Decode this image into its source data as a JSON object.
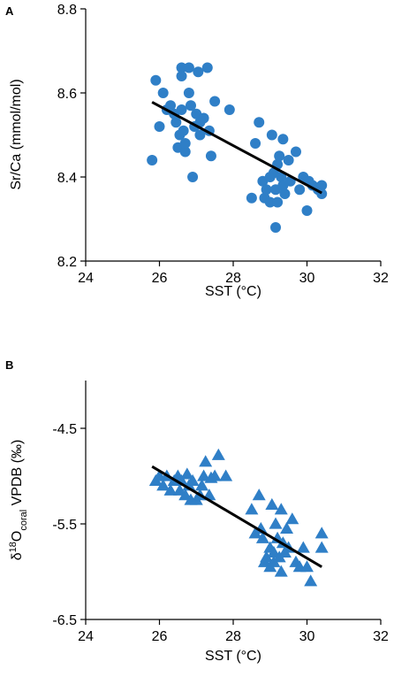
{
  "chart_data": [
    {
      "panel": "A",
      "type": "scatter",
      "xlabel": "SST (°C)",
      "ylabel": "Sr/Ca (mmol/mol)",
      "xlim": [
        24,
        32
      ],
      "ylim": [
        8.2,
        8.8
      ],
      "xticks": [
        "24",
        "26",
        "28",
        "30",
        "32"
      ],
      "yticks": [
        "8.2",
        "8.4",
        "8.6",
        "8.8"
      ],
      "marker": "circle",
      "color": "#2f7fc7",
      "trendline": {
        "x": [
          25.8,
          30.4
        ],
        "y": [
          8.578,
          8.362
        ]
      },
      "points": [
        [
          25.8,
          8.44
        ],
        [
          25.9,
          8.63
        ],
        [
          26.0,
          8.52
        ],
        [
          26.1,
          8.6
        ],
        [
          26.2,
          8.56
        ],
        [
          26.3,
          8.57
        ],
        [
          26.4,
          8.55
        ],
        [
          26.45,
          8.53
        ],
        [
          26.5,
          8.47
        ],
        [
          26.55,
          8.5
        ],
        [
          26.6,
          8.66
        ],
        [
          26.6,
          8.64
        ],
        [
          26.6,
          8.56
        ],
        [
          26.65,
          8.51
        ],
        [
          26.7,
          8.46
        ],
        [
          26.7,
          8.48
        ],
        [
          26.8,
          8.66
        ],
        [
          26.8,
          8.6
        ],
        [
          26.85,
          8.57
        ],
        [
          26.9,
          8.4
        ],
        [
          26.95,
          8.52
        ],
        [
          27.0,
          8.55
        ],
        [
          27.05,
          8.65
        ],
        [
          27.1,
          8.53
        ],
        [
          27.1,
          8.5
        ],
        [
          27.2,
          8.54
        ],
        [
          27.3,
          8.66
        ],
        [
          27.35,
          8.51
        ],
        [
          27.4,
          8.45
        ],
        [
          27.5,
          8.58
        ],
        [
          27.9,
          8.56
        ],
        [
          28.5,
          8.35
        ],
        [
          28.6,
          8.48
        ],
        [
          28.7,
          8.53
        ],
        [
          28.8,
          8.39
        ],
        [
          28.85,
          8.35
        ],
        [
          28.9,
          8.37
        ],
        [
          29.0,
          8.4
        ],
        [
          29.0,
          8.34
        ],
        [
          29.05,
          8.5
        ],
        [
          29.1,
          8.41
        ],
        [
          29.15,
          8.28
        ],
        [
          29.15,
          8.37
        ],
        [
          29.2,
          8.43
        ],
        [
          29.2,
          8.34
        ],
        [
          29.25,
          8.45
        ],
        [
          29.3,
          8.4
        ],
        [
          29.35,
          8.49
        ],
        [
          29.35,
          8.38
        ],
        [
          29.4,
          8.36
        ],
        [
          29.5,
          8.44
        ],
        [
          29.55,
          8.39
        ],
        [
          29.7,
          8.46
        ],
        [
          29.8,
          8.37
        ],
        [
          29.9,
          8.4
        ],
        [
          30.0,
          8.32
        ],
        [
          30.05,
          8.39
        ],
        [
          30.15,
          8.38
        ],
        [
          30.3,
          8.37
        ],
        [
          30.4,
          8.38
        ],
        [
          30.4,
          8.36
        ]
      ]
    },
    {
      "panel": "B",
      "type": "scatter",
      "xlabel": "SST (°C)",
      "ylabel_parts": [
        "δ",
        "18",
        "O",
        "coral",
        " VPDB (‰)"
      ],
      "xlim": [
        24,
        32
      ],
      "ylim": [
        -6.5,
        -4.0
      ],
      "xticks": [
        "24",
        "26",
        "28",
        "30",
        "32"
      ],
      "yticks": [
        "-4.5",
        "-5.5",
        "-6.5"
      ],
      "ytick_values": [
        -4.5,
        -5.5,
        -6.5
      ],
      "marker": "triangle",
      "color": "#2f7fc7",
      "trendline": {
        "x": [
          25.8,
          30.4
        ],
        "y": [
          -4.9,
          -5.95
        ]
      },
      "points": [
        [
          25.9,
          -5.05
        ],
        [
          26.0,
          -5.0
        ],
        [
          26.1,
          -5.1
        ],
        [
          26.2,
          -5.0
        ],
        [
          26.3,
          -5.15
        ],
        [
          26.4,
          -5.05
        ],
        [
          26.5,
          -5.0
        ],
        [
          26.55,
          -5.15
        ],
        [
          26.6,
          -5.05
        ],
        [
          26.7,
          -5.2
        ],
        [
          26.75,
          -4.98
        ],
        [
          26.8,
          -5.1
        ],
        [
          26.85,
          -5.25
        ],
        [
          26.9,
          -5.05
        ],
        [
          27.0,
          -5.25
        ],
        [
          27.1,
          -5.2
        ],
        [
          27.15,
          -5.1
        ],
        [
          27.2,
          -5.0
        ],
        [
          27.25,
          -4.85
        ],
        [
          27.35,
          -5.2
        ],
        [
          27.4,
          -5.02
        ],
        [
          27.5,
          -5.0
        ],
        [
          27.6,
          -4.78
        ],
        [
          27.8,
          -5.0
        ],
        [
          28.5,
          -5.35
        ],
        [
          28.6,
          -5.6
        ],
        [
          28.7,
          -5.2
        ],
        [
          28.75,
          -5.55
        ],
        [
          28.8,
          -5.65
        ],
        [
          28.85,
          -5.9
        ],
        [
          28.9,
          -5.85
        ],
        [
          29.0,
          -5.75
        ],
        [
          29.0,
          -5.95
        ],
        [
          29.05,
          -5.3
        ],
        [
          29.1,
          -5.9
        ],
        [
          29.1,
          -5.8
        ],
        [
          29.15,
          -5.5
        ],
        [
          29.2,
          -5.65
        ],
        [
          29.25,
          -5.85
        ],
        [
          29.3,
          -5.35
        ],
        [
          29.3,
          -6.0
        ],
        [
          29.35,
          -5.7
        ],
        [
          29.4,
          -5.8
        ],
        [
          29.45,
          -5.55
        ],
        [
          29.5,
          -5.75
        ],
        [
          29.6,
          -5.45
        ],
        [
          29.7,
          -5.9
        ],
        [
          29.8,
          -5.95
        ],
        [
          29.9,
          -5.75
        ],
        [
          30.0,
          -5.95
        ],
        [
          30.1,
          -6.1
        ],
        [
          30.4,
          -5.75
        ],
        [
          30.4,
          -5.6
        ]
      ]
    }
  ]
}
